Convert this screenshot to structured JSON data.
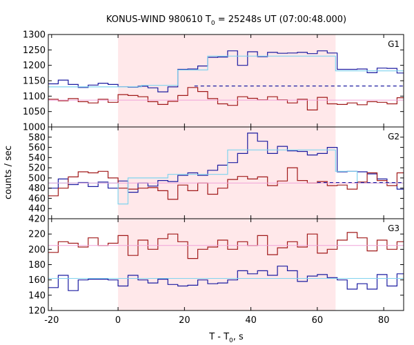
{
  "chart_data": {
    "type": "line",
    "title": "KONUS-WIND 980610 T",
    "title_sub": "0",
    "title_rest": " = 25248s UT (07:00:48.000)",
    "xlabel": "T - T",
    "xlabel_sub": "0",
    "xlabel_rest": ", s",
    "ylabel": "counts / sec",
    "x_range": [
      -21.0,
      86.0
    ],
    "x_ticks": [
      -20,
      0,
      20,
      40,
      60,
      80
    ],
    "x_tick_labels": [
      "-20",
      "0",
      "20",
      "40",
      "60",
      "80"
    ],
    "bin_edges": [
      -21.0,
      -18.0,
      -15.0,
      -12.0,
      -9.0,
      -6.0,
      -3.0,
      0.0,
      3.0,
      6.0,
      9.0,
      12.0,
      15.0,
      18.0,
      21.0,
      24.0,
      27.0,
      30.0,
      33.0,
      36.0,
      39.0,
      42.0,
      45.0,
      48.0,
      51.0,
      54.0,
      57.0,
      60.0,
      63.0,
      66.0,
      69.0,
      72.0,
      75.0,
      78.0,
      81.0,
      84.0,
      86.0
    ],
    "shaded_interval": [
      0.0,
      65.5
    ],
    "colors": {
      "shade": "#ffe8ea",
      "blue_series": "#1a1aa0",
      "red_series": "#a01818",
      "model_light_blue": "#7fd3ee",
      "background_pink": "#f0a0d8",
      "dashed_blue": "#1a1aa0"
    },
    "panels": [
      {
        "label": "G1",
        "y_range": [
          1000,
          1300
        ],
        "y_ticks": [
          1000,
          1050,
          1100,
          1150,
          1200,
          1250,
          1300
        ],
        "y_tick_labels": [
          "1000",
          "1050",
          "1100",
          "1150",
          "1200",
          "1250",
          "1300"
        ],
        "series": [
          {
            "color_key": "blue_series",
            "kind": "step",
            "values": [
              1140,
              1152,
              1138,
              1128,
              1136,
              1142,
              1138,
              1130,
              1129,
              1132,
              1127,
              1114,
              1130,
              1187,
              1188,
              1198,
              1226,
              1227,
              1247,
              1200,
              1244,
              1228,
              1242,
              1239,
              1240,
              1242,
              1238,
              1247,
              1240,
              1187,
              1187,
              1188,
              1176,
              1191,
              1190,
              1175
            ]
          },
          {
            "color_key": "red_series",
            "kind": "step",
            "values": [
              1090,
              1085,
              1092,
              1082,
              1078,
              1090,
              1080,
              1105,
              1102,
              1098,
              1082,
              1073,
              1083,
              1102,
              1128,
              1115,
              1092,
              1075,
              1070,
              1098,
              1093,
              1088,
              1098,
              1088,
              1078,
              1090,
              1055,
              1096,
              1075,
              1073,
              1078,
              1072,
              1082,
              1080,
              1075,
              1095
            ]
          },
          {
            "color_key": "model_light_blue",
            "kind": "step_model",
            "segments": [
              [
                -21,
                1130
              ],
              [
                7,
                1135
              ],
              [
                18,
                1185
              ],
              [
                27,
                1230
              ],
              [
                65.5,
                1182
              ],
              [
                86,
                1182
              ]
            ]
          },
          {
            "color_key": "background_pink",
            "kind": "level",
            "value": 1087
          },
          {
            "color_key": "dashed_blue",
            "kind": "dashed_level",
            "from": 23.0,
            "to": 86.0,
            "value": 1133
          }
        ]
      },
      {
        "label": "G2",
        "y_range": [
          420,
          600
        ],
        "y_ticks": [
          420,
          440,
          460,
          480,
          500,
          520,
          540,
          560,
          580
        ],
        "y_tick_labels": [
          "420",
          "440",
          "460",
          "480",
          "500",
          "520",
          "540",
          "560",
          "580"
        ],
        "series": [
          {
            "color_key": "blue_series",
            "kind": "step",
            "values": [
              480,
              498,
              487,
              491,
              483,
              492,
              480,
              494,
              472,
              490,
              484,
              495,
              493,
              505,
              510,
              505,
              515,
              525,
              530,
              548,
              588,
              572,
              548,
              562,
              553,
              552,
              545,
              548,
              560,
              512,
              513,
              512,
              508,
              498,
              490,
              478
            ]
          },
          {
            "color_key": "red_series",
            "kind": "step",
            "values": [
              465,
              480,
              502,
              512,
              510,
              513,
              500,
              480,
              478,
              480,
              481,
              475,
              458,
              486,
              475,
              490,
              468,
              480,
              497,
              503,
              498,
              502,
              485,
              494,
              520,
              495,
              490,
              493,
              485,
              486,
              478,
              492,
              510,
              495,
              485,
              510
            ]
          },
          {
            "color_key": "model_light_blue",
            "kind": "step_model",
            "segments": [
              [
                -21,
                490
              ],
              [
                0,
                449
              ],
              [
                3,
                500
              ],
              [
                15,
                507
              ],
              [
                33,
                555
              ],
              [
                65.5,
                513
              ],
              [
                72,
                490
              ],
              [
                86,
                490
              ]
            ]
          },
          {
            "color_key": "background_pink",
            "kind": "level",
            "value": 490
          },
          {
            "color_key": "dashed_blue",
            "kind": "dashed_level",
            "from": 60.0,
            "to": 86.0,
            "value": 491
          }
        ]
      },
      {
        "label": "G3",
        "y_range": [
          120,
          240
        ],
        "y_ticks": [
          120,
          140,
          160,
          180,
          200,
          220
        ],
        "y_tick_labels": [
          "120",
          "140",
          "160",
          "180",
          "200",
          "220"
        ],
        "series": [
          {
            "color_key": "blue_series",
            "kind": "step",
            "values": [
              150,
              166,
              146,
              160,
              161,
              161,
              160,
              152,
              166,
              160,
              156,
              161,
              154,
              152,
              153,
              160,
              155,
              156,
              160,
              172,
              168,
              172,
              166,
              178,
              172,
              158,
              165,
              167,
              163,
              160,
              148,
              155,
              148,
              167,
              152,
              168
            ]
          },
          {
            "color_key": "red_series",
            "kind": "step",
            "values": [
              196,
              210,
              208,
              203,
              215,
              205,
              208,
              218,
              192,
              212,
              200,
              214,
              220,
              210,
              188,
              200,
              203,
              212,
              200,
              210,
              205,
              218,
              193,
              202,
              210,
              203,
              220,
              195,
              200,
              212,
              222,
              215,
              198,
              212,
              200,
              210
            ]
          },
          {
            "color_key": "model_light_blue",
            "kind": "level",
            "value": 162
          },
          {
            "color_key": "background_pink",
            "kind": "level",
            "value": 205
          }
        ]
      }
    ]
  }
}
